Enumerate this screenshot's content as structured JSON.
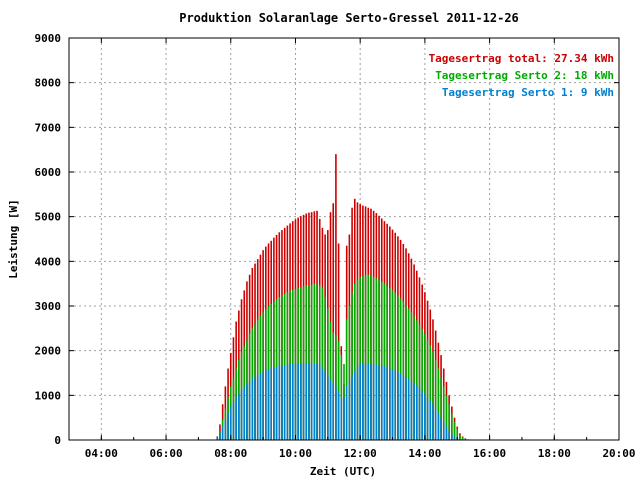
{
  "chart_data": {
    "type": "bar",
    "title": "Produktion Solaranlage Serto-Gressel 2011-12-26",
    "xlabel": "Zeit (UTC)",
    "ylabel": "Leistung [W]",
    "xlim": [
      "03:00",
      "20:00"
    ],
    "ylim": [
      0,
      9000
    ],
    "x_ticks": [
      "04:00",
      "06:00",
      "08:00",
      "10:00",
      "12:00",
      "14:00",
      "16:00",
      "18:00",
      "20:00"
    ],
    "y_ticks": [
      "0",
      "1000",
      "2000",
      "3000",
      "4000",
      "5000",
      "6000",
      "7000",
      "8000",
      "9000"
    ],
    "grid": true,
    "legend_position": "top-right",
    "legend": [
      {
        "text": "Tagesertrag total: 27.34 kWh",
        "color": "#cc0000"
      },
      {
        "text": "Tagesertrag Serto 2: 18 kWh",
        "color": "#00aa00"
      },
      {
        "text": "Tagesertrag Serto 1: 9 kWh",
        "color": "#0080d0"
      }
    ],
    "x": [
      "07:35",
      "07:40",
      "07:45",
      "07:50",
      "07:55",
      "08:00",
      "08:05",
      "08:10",
      "08:15",
      "08:20",
      "08:25",
      "08:30",
      "08:35",
      "08:40",
      "08:45",
      "08:50",
      "08:55",
      "09:00",
      "09:05",
      "09:10",
      "09:15",
      "09:20",
      "09:25",
      "09:30",
      "09:35",
      "09:40",
      "09:45",
      "09:50",
      "09:55",
      "10:00",
      "10:05",
      "10:10",
      "10:15",
      "10:20",
      "10:25",
      "10:30",
      "10:35",
      "10:40",
      "10:45",
      "10:50",
      "10:55",
      "11:00",
      "11:05",
      "11:10",
      "11:15",
      "11:20",
      "11:25",
      "11:30",
      "11:35",
      "11:40",
      "11:45",
      "11:50",
      "11:55",
      "12:00",
      "12:05",
      "12:10",
      "12:15",
      "12:20",
      "12:25",
      "12:30",
      "12:35",
      "12:40",
      "12:45",
      "12:50",
      "12:55",
      "13:00",
      "13:05",
      "13:10",
      "13:15",
      "13:20",
      "13:25",
      "13:30",
      "13:35",
      "13:40",
      "13:45",
      "13:50",
      "13:55",
      "14:00",
      "14:05",
      "14:10",
      "14:15",
      "14:20",
      "14:25",
      "14:30",
      "14:35",
      "14:40",
      "14:45",
      "14:50",
      "14:55",
      "15:00",
      "15:05",
      "15:10",
      "15:15",
      "15:20",
      "15:25",
      "15:30",
      "15:35",
      "15:40"
    ],
    "series": [
      {
        "name": "Serto 1",
        "color": "#0080d0",
        "values": [
          50,
          150,
          300,
          450,
          600,
          750,
          850,
          950,
          1050,
          1120,
          1180,
          1250,
          1320,
          1380,
          1420,
          1460,
          1500,
          1530,
          1560,
          1590,
          1610,
          1620,
          1640,
          1660,
          1670,
          1680,
          1690,
          1700,
          1700,
          1710,
          1710,
          1720,
          1720,
          1720,
          1730,
          1730,
          1700,
          1700,
          1690,
          1600,
          1550,
          1450,
          1350,
          1280,
          1200,
          1080,
          930,
          950,
          1200,
          1300,
          1450,
          1550,
          1650,
          1700,
          1710,
          1720,
          1720,
          1700,
          1700,
          1690,
          1680,
          1670,
          1650,
          1630,
          1600,
          1580,
          1550,
          1520,
          1480,
          1450,
          1410,
          1370,
          1320,
          1270,
          1220,
          1170,
          1100,
          1030,
          960,
          880,
          800,
          700,
          600,
          500,
          400,
          300,
          200,
          130,
          80,
          40,
          20,
          0,
          0,
          0,
          0,
          0,
          0,
          0
        ]
      },
      {
        "name": "Serto 2",
        "color": "#00aa00",
        "values": [
          50,
          200,
          450,
          700,
          950,
          1200,
          1400,
          1600,
          1800,
          1950,
          2100,
          2250,
          2380,
          2500,
          2600,
          2700,
          2780,
          2860,
          2930,
          3000,
          3050,
          3100,
          3150,
          3200,
          3240,
          3280,
          3310,
          3340,
          3360,
          3380,
          3400,
          3420,
          3440,
          3460,
          3470,
          3480,
          3500,
          3480,
          3460,
          3400,
          3200,
          2950,
          2650,
          2400,
          2350,
          2200,
          1900,
          1700,
          2700,
          3000,
          3300,
          3500,
          3600,
          3650,
          3680,
          3700,
          3700,
          3680,
          3650,
          3620,
          3580,
          3540,
          3500,
          3450,
          3400,
          3350,
          3300,
          3240,
          3170,
          3100,
          3020,
          2940,
          2860,
          2770,
          2680,
          2580,
          2480,
          2370,
          2250,
          2120,
          1980,
          1800,
          1600,
          1400,
          1200,
          1000,
          800,
          600,
          400,
          250,
          120,
          60,
          30,
          10,
          5,
          0,
          0,
          0
        ]
      },
      {
        "name": "total",
        "color": "#cc0000",
        "values": [
          80,
          350,
          800,
          1200,
          1600,
          1950,
          2300,
          2650,
          2900,
          3150,
          3350,
          3550,
          3700,
          3850,
          3950,
          4050,
          4150,
          4250,
          4330,
          4400,
          4460,
          4530,
          4590,
          4650,
          4700,
          4750,
          4800,
          4850,
          4900,
          4940,
          4980,
          5010,
          5040,
          5070,
          5090,
          5100,
          5120,
          5130,
          4950,
          4750,
          4600,
          4700,
          5100,
          5300,
          6400,
          4400,
          2100,
          1250,
          4350,
          4600,
          5200,
          5400,
          5320,
          5280,
          5250,
          5230,
          5200,
          5180,
          5130,
          5080,
          5020,
          4960,
          4900,
          4840,
          4780,
          4710,
          4640,
          4560,
          4480,
          4390,
          4290,
          4180,
          4060,
          3930,
          3790,
          3640,
          3480,
          3310,
          3120,
          2920,
          2700,
          2450,
          2180,
          1900,
          1600,
          1300,
          1000,
          750,
          500,
          300,
          150,
          80,
          40,
          15,
          5,
          0,
          0,
          0
        ]
      }
    ]
  }
}
